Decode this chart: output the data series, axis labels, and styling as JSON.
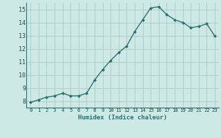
{
  "x": [
    0,
    1,
    2,
    3,
    4,
    5,
    6,
    7,
    8,
    9,
    10,
    11,
    12,
    13,
    14,
    15,
    16,
    17,
    18,
    19,
    20,
    21,
    22,
    23
  ],
  "y": [
    7.9,
    8.1,
    8.3,
    8.4,
    8.6,
    8.4,
    8.4,
    8.6,
    9.6,
    10.4,
    11.1,
    11.7,
    12.2,
    13.3,
    14.2,
    15.1,
    15.2,
    14.6,
    14.2,
    14.0,
    13.6,
    13.7,
    13.9,
    12.95
  ],
  "xlabel": "Humidex (Indice chaleur)",
  "xlim": [
    -0.5,
    23.5
  ],
  "ylim": [
    7.5,
    15.5
  ],
  "yticks": [
    8,
    9,
    10,
    11,
    12,
    13,
    14,
    15
  ],
  "xtick_labels": [
    "0",
    "1",
    "2",
    "3",
    "4",
    "5",
    "6",
    "7",
    "8",
    "9",
    "10",
    "11",
    "12",
    "13",
    "14",
    "15",
    "16",
    "17",
    "18",
    "19",
    "20",
    "21",
    "22",
    "23"
  ],
  "bg_color": "#cce9e6",
  "line_color": "#2d6e6e",
  "grid_color": "#b0c8c5",
  "marker": "D",
  "marker_size": 2.0,
  "linewidth": 1.0
}
